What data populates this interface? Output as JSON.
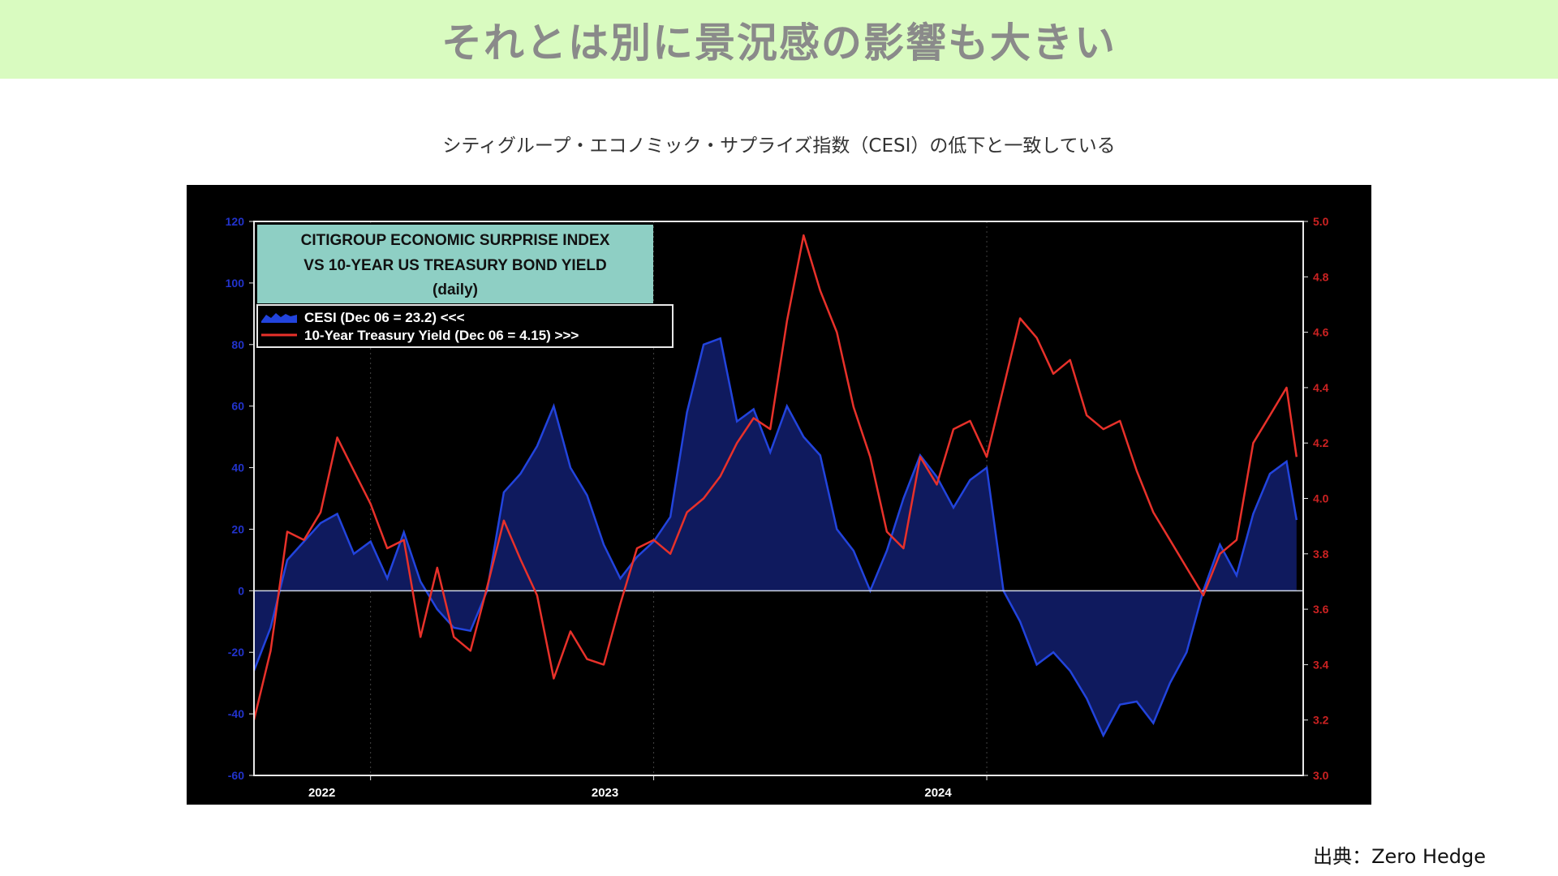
{
  "header": {
    "title": "それとは別に景況感の影響も大きい"
  },
  "subtitle": "シティグループ・エコノミック・サプライズ指数（CESI）の低下と一致している",
  "source": "出典：Zero Hedge",
  "colors": {
    "banner_bg": "#d9fbc0",
    "title_text": "#8a8a8a",
    "cesi_fill": "#0f1a5e",
    "cesi_line": "#2244dd",
    "yield_line": "#e8312a",
    "left_axis": "#2233cc",
    "right_axis": "#cc2222",
    "title_box": "#8ecfc4"
  },
  "chart_data": {
    "type": "line",
    "title_lines": [
      "CITIGROUP ECONOMIC SURPRISE INDEX",
      "VS 10-YEAR US TREASURY BOND YIELD",
      "(daily)"
    ],
    "legend": [
      "CESI (Dec 06 = 23.2) <<<",
      "10-Year Treasury Yield (Dec 06 = 4.15) >>>"
    ],
    "x_ticks": [
      "2022",
      "2023",
      "2024"
    ],
    "x_tick_pos": [
      2022.15,
      2023.0,
      2024.0
    ],
    "xlim": [
      2021.8,
      2024.95
    ],
    "left_axis": {
      "ylim": [
        -60,
        120
      ],
      "ticks": [
        "120",
        "100",
        "80",
        "60",
        "40",
        "20",
        "0",
        "-20",
        "-40",
        "-60"
      ]
    },
    "right_axis": {
      "ylim": [
        3.0,
        5.0
      ],
      "ticks": [
        "5.0",
        "4.8",
        "4.6",
        "4.4",
        "4.2",
        "4.0",
        "3.8",
        "3.6",
        "3.4",
        "3.2",
        "3.0"
      ]
    },
    "series": [
      {
        "name": "CESI (Dec 06 = 23.2) <<<",
        "axis": "left",
        "style": "area",
        "x": [
          2021.8,
          2021.85,
          2021.9,
          2021.95,
          2022.0,
          2022.05,
          2022.1,
          2022.15,
          2022.2,
          2022.25,
          2022.3,
          2022.35,
          2022.4,
          2022.45,
          2022.5,
          2022.55,
          2022.6,
          2022.65,
          2022.7,
          2022.75,
          2022.8,
          2022.85,
          2022.9,
          2022.95,
          2023.0,
          2023.05,
          2023.1,
          2023.15,
          2023.2,
          2023.25,
          2023.3,
          2023.35,
          2023.4,
          2023.45,
          2023.5,
          2023.55,
          2023.6,
          2023.65,
          2023.7,
          2023.75,
          2023.8,
          2023.85,
          2023.9,
          2023.95,
          2024.0,
          2024.05,
          2024.1,
          2024.15,
          2024.2,
          2024.25,
          2024.3,
          2024.35,
          2024.4,
          2024.45,
          2024.5,
          2024.55,
          2024.6,
          2024.65,
          2024.7,
          2024.75,
          2024.8,
          2024.85,
          2024.9,
          2024.93
        ],
        "values": [
          -26,
          -12,
          10,
          16,
          22,
          25,
          12,
          16,
          4,
          19,
          3,
          -6,
          -12,
          -13,
          0,
          32,
          38,
          47,
          60,
          40,
          31,
          15,
          4,
          11,
          16,
          24,
          58,
          80,
          82,
          55,
          59,
          45,
          60,
          50,
          44,
          20,
          13,
          0,
          13,
          30,
          44,
          37,
          27,
          36,
          40,
          0,
          -10,
          -24,
          -20,
          -26,
          -35,
          -47,
          -37,
          -36,
          -43,
          -30,
          -20,
          0,
          15,
          5,
          25,
          38,
          42,
          23
        ]
      },
      {
        "name": "10-Year Treasury Yield (Dec 06 = 4.15) >>>",
        "axis": "right",
        "style": "line",
        "x": [
          2021.8,
          2021.85,
          2021.9,
          2021.95,
          2022.0,
          2022.05,
          2022.1,
          2022.15,
          2022.2,
          2022.25,
          2022.3,
          2022.35,
          2022.4,
          2022.45,
          2022.5,
          2022.55,
          2022.6,
          2022.65,
          2022.7,
          2022.75,
          2022.8,
          2022.85,
          2022.9,
          2022.95,
          2023.0,
          2023.05,
          2023.1,
          2023.15,
          2023.2,
          2023.25,
          2023.3,
          2023.35,
          2023.4,
          2023.45,
          2023.5,
          2023.55,
          2023.6,
          2023.65,
          2023.7,
          2023.75,
          2023.8,
          2023.85,
          2023.9,
          2023.95,
          2024.0,
          2024.05,
          2024.1,
          2024.15,
          2024.2,
          2024.25,
          2024.3,
          2024.35,
          2024.4,
          2024.45,
          2024.5,
          2024.55,
          2024.6,
          2024.65,
          2024.7,
          2024.75,
          2024.8,
          2024.85,
          2024.9,
          2024.93
        ],
        "values": [
          3.2,
          3.45,
          3.88,
          3.85,
          3.95,
          4.22,
          4.1,
          3.98,
          3.82,
          3.85,
          3.5,
          3.75,
          3.5,
          3.45,
          3.68,
          3.92,
          3.78,
          3.65,
          3.35,
          3.52,
          3.42,
          3.4,
          3.62,
          3.82,
          3.85,
          3.8,
          3.95,
          4.0,
          4.08,
          4.2,
          4.29,
          4.25,
          4.64,
          4.95,
          4.75,
          4.6,
          4.33,
          4.15,
          3.88,
          3.82,
          4.15,
          4.05,
          4.25,
          4.28,
          4.15,
          4.4,
          4.65,
          4.58,
          4.45,
          4.5,
          4.3,
          4.25,
          4.28,
          4.1,
          3.95,
          3.85,
          3.75,
          3.65,
          3.8,
          3.85,
          4.2,
          4.3,
          4.4,
          4.15
        ]
      }
    ]
  }
}
